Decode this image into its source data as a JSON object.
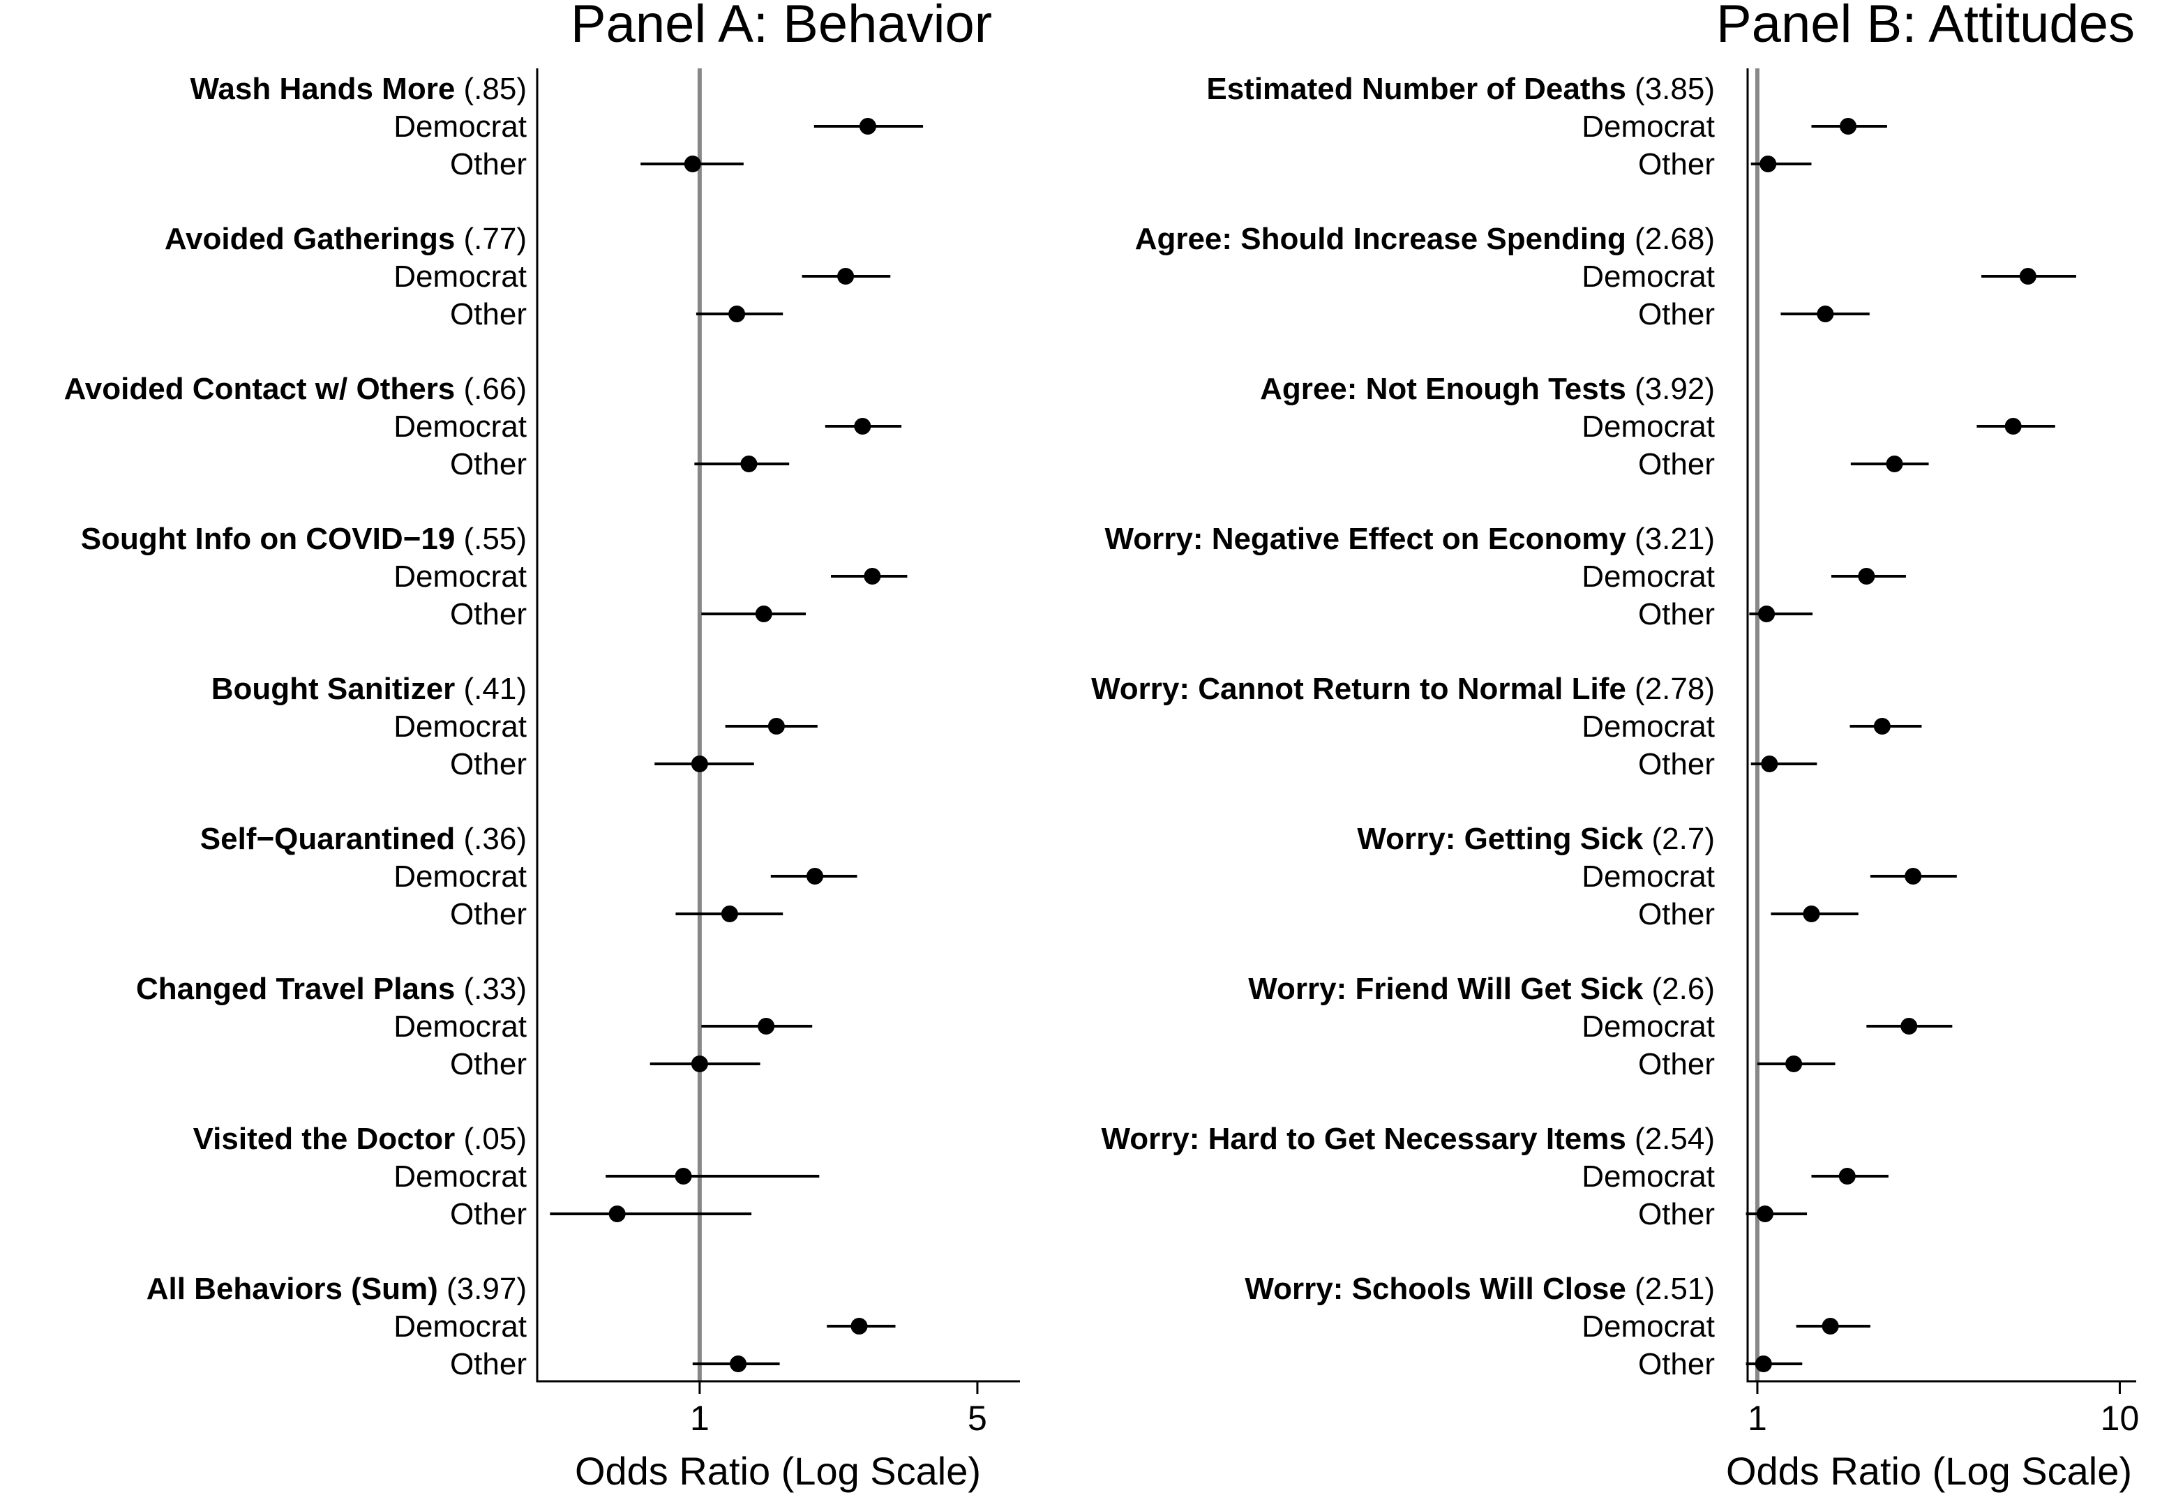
{
  "chart_data": [
    {
      "type": "forest",
      "title": "Panel A: Behavior",
      "xlabel": "Odds Ratio (Log Scale)",
      "xscale": "log",
      "xlim": [
        0.39,
        6.4
      ],
      "reference_line": 1,
      "ticks": [
        {
          "value": 1,
          "label": "1"
        },
        {
          "value": 5,
          "label": "5"
        }
      ],
      "series_labels": [
        "Democrat",
        "Other"
      ],
      "items": [
        {
          "label": "Wash Hands More",
          "stat": "(.85)",
          "democrat": {
            "or": 2.65,
            "lo": 1.94,
            "hi": 3.65
          },
          "other": {
            "or": 0.96,
            "lo": 0.71,
            "hi": 1.29
          }
        },
        {
          "label": "Avoided Gatherings",
          "stat": "(.77)",
          "democrat": {
            "or": 2.33,
            "lo": 1.81,
            "hi": 3.02
          },
          "other": {
            "or": 1.24,
            "lo": 0.98,
            "hi": 1.62
          }
        },
        {
          "label": "Avoided Contact w/ Others",
          "stat": "(.66)",
          "democrat": {
            "or": 2.57,
            "lo": 2.07,
            "hi": 3.22
          },
          "other": {
            "or": 1.33,
            "lo": 0.97,
            "hi": 1.68
          }
        },
        {
          "label": "Sought Info on COVID−19",
          "stat": "(.55)",
          "democrat": {
            "or": 2.72,
            "lo": 2.14,
            "hi": 3.33
          },
          "other": {
            "or": 1.45,
            "lo": 1.01,
            "hi": 1.85
          }
        },
        {
          "label": "Bought Sanitizer",
          "stat": "(.41)",
          "democrat": {
            "or": 1.56,
            "lo": 1.16,
            "hi": 1.98
          },
          "other": {
            "or": 1.0,
            "lo": 0.77,
            "hi": 1.37
          }
        },
        {
          "label": "Self−Quarantined",
          "stat": "(.36)",
          "democrat": {
            "or": 1.95,
            "lo": 1.51,
            "hi": 2.49
          },
          "other": {
            "or": 1.19,
            "lo": 0.87,
            "hi": 1.62
          }
        },
        {
          "label": "Changed Travel Plans",
          "stat": "(.33)",
          "democrat": {
            "or": 1.47,
            "lo": 1.01,
            "hi": 1.92
          },
          "other": {
            "or": 1.0,
            "lo": 0.75,
            "hi": 1.42
          }
        },
        {
          "label": "Visited the Doctor",
          "stat": "(.05)",
          "democrat": {
            "or": 0.91,
            "lo": 0.58,
            "hi": 2.0
          },
          "other": {
            "or": 0.62,
            "lo": 0.42,
            "hi": 1.35
          }
        },
        {
          "label": "All Behaviors (Sum)",
          "stat": "(3.97)",
          "democrat": {
            "or": 2.52,
            "lo": 2.09,
            "hi": 3.11
          },
          "other": {
            "or": 1.25,
            "lo": 0.96,
            "hi": 1.59
          }
        }
      ]
    },
    {
      "type": "forest",
      "title": "Panel B: Attitudes",
      "xlabel": "Odds Ratio (Log Scale)",
      "xscale": "log",
      "xlim": [
        0.94,
        11.1
      ],
      "reference_line": 1,
      "ticks": [
        {
          "value": 1,
          "label": "1"
        },
        {
          "value": 10,
          "label": "10"
        }
      ],
      "series_labels": [
        "Democrat",
        "Other"
      ],
      "items": [
        {
          "label": "Estimated Number of Deaths",
          "stat": "(3.85)",
          "democrat": {
            "or": 1.78,
            "lo": 1.41,
            "hi": 2.28
          },
          "other": {
            "or": 1.07,
            "lo": 0.96,
            "hi": 1.41
          }
        },
        {
          "label": "Agree: Should Increase Spending",
          "stat": "(2.68)",
          "democrat": {
            "or": 5.58,
            "lo": 4.15,
            "hi": 7.58
          },
          "other": {
            "or": 1.54,
            "lo": 1.16,
            "hi": 2.04
          }
        },
        {
          "label": "Agree: Not Enough Tests",
          "stat": "(3.92)",
          "democrat": {
            "or": 5.08,
            "lo": 4.03,
            "hi": 6.63
          },
          "other": {
            "or": 2.39,
            "lo": 1.81,
            "hi": 2.97
          }
        },
        {
          "label": "Worry: Negative Effect on Economy",
          "stat": "(3.21)",
          "democrat": {
            "or": 2.0,
            "lo": 1.6,
            "hi": 2.57
          },
          "other": {
            "or": 1.06,
            "lo": 0.95,
            "hi": 1.42
          }
        },
        {
          "label": "Worry: Cannot Return to Normal Life",
          "stat": "(2.78)",
          "democrat": {
            "or": 2.21,
            "lo": 1.8,
            "hi": 2.84
          },
          "other": {
            "or": 1.08,
            "lo": 0.96,
            "hi": 1.46
          }
        },
        {
          "label": "Worry: Getting Sick",
          "stat": "(2.7)",
          "democrat": {
            "or": 2.69,
            "lo": 2.05,
            "hi": 3.55
          },
          "other": {
            "or": 1.41,
            "lo": 1.09,
            "hi": 1.9
          }
        },
        {
          "label": "Worry: Friend Will Get Sick",
          "stat": "(2.6)",
          "democrat": {
            "or": 2.62,
            "lo": 2.0,
            "hi": 3.45
          },
          "other": {
            "or": 1.26,
            "lo": 1.0,
            "hi": 1.64
          }
        },
        {
          "label": "Worry: Hard to Get Necessary Items",
          "stat": "(2.54)",
          "democrat": {
            "or": 1.77,
            "lo": 1.41,
            "hi": 2.3
          },
          "other": {
            "or": 1.05,
            "lo": 0.93,
            "hi": 1.37
          }
        },
        {
          "label": "Worry: Schools Will Close",
          "stat": "(2.51)",
          "democrat": {
            "or": 1.59,
            "lo": 1.28,
            "hi": 2.05
          },
          "other": {
            "or": 1.04,
            "lo": 0.93,
            "hi": 1.33
          }
        }
      ]
    }
  ]
}
